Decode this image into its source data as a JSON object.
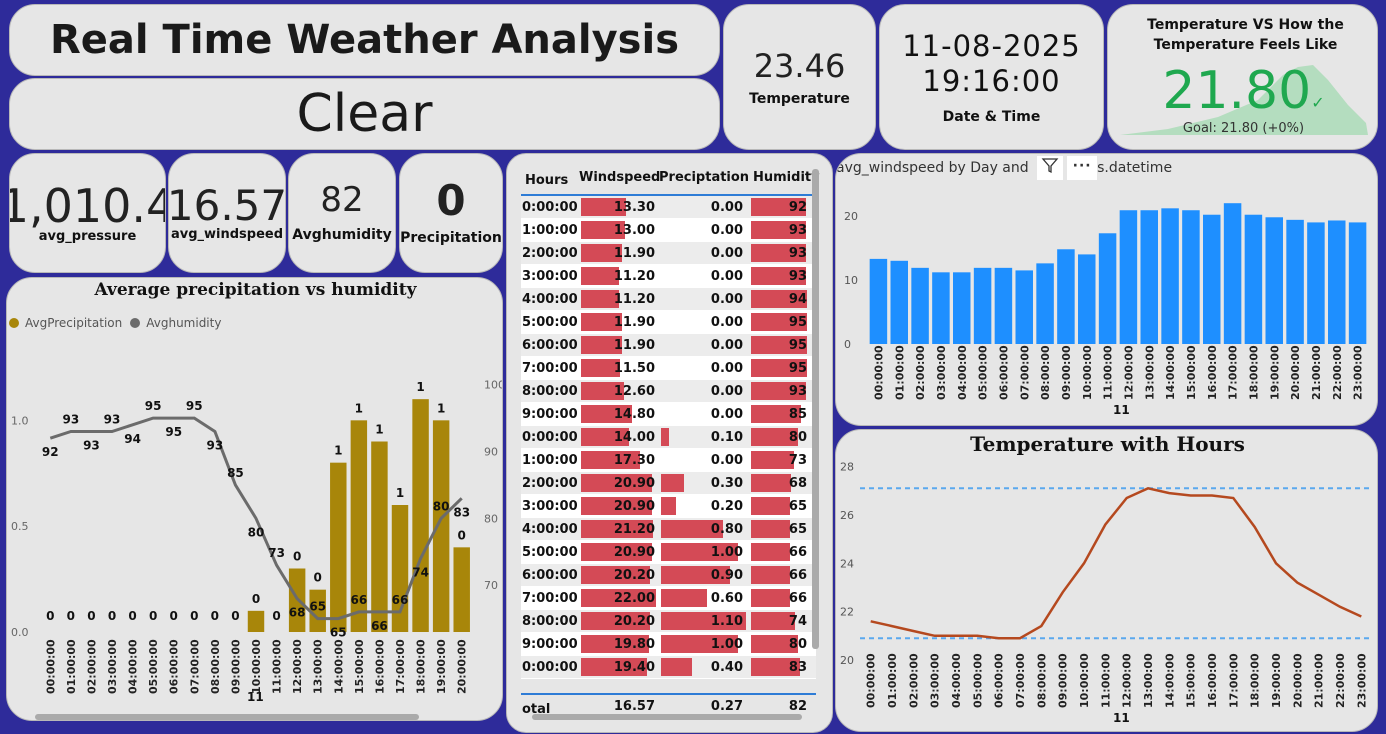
{
  "header": {
    "title": "Real Time Weather Analysis",
    "condition": "Clear"
  },
  "temperature_card": {
    "value": "23.46",
    "label": "Temperature"
  },
  "datetime_card": {
    "date": "11-08-2025",
    "time": "19:16:00",
    "label": "Date & Time"
  },
  "kpi_card": {
    "title": "Temperature VS How the Temperature Feels Like",
    "value": "21.80",
    "goal": "Goal: 21.80 (+0%)",
    "check": "✓",
    "accent": "#1fa84f"
  },
  "stats": [
    {
      "value": "1,010.4",
      "label": "avg_pressure"
    },
    {
      "value": "16.57",
      "label": "avg_windspeed"
    },
    {
      "value": "82",
      "label": "Avghumidity"
    },
    {
      "value": "0",
      "label": "Precipitation"
    }
  ],
  "precip_chart": {
    "title": "Average precipitation vs humidity",
    "legend": [
      {
        "name": "AvgPrecipitation",
        "color": "#a8860a"
      },
      {
        "name": "Avghumidity",
        "color": "#6b6b6b"
      }
    ],
    "day_label": "11"
  },
  "table": {
    "columns": [
      "Hours",
      "Windspeed",
      "Preciptation",
      "Humidity"
    ],
    "rows": [
      [
        "0:00:00",
        "13.30",
        "0.00",
        "92"
      ],
      [
        "1:00:00",
        "13.00",
        "0.00",
        "93"
      ],
      [
        "2:00:00",
        "11.90",
        "0.00",
        "93"
      ],
      [
        "3:00:00",
        "11.20",
        "0.00",
        "93"
      ],
      [
        "4:00:00",
        "11.20",
        "0.00",
        "94"
      ],
      [
        "5:00:00",
        "11.90",
        "0.00",
        "95"
      ],
      [
        "6:00:00",
        "11.90",
        "0.00",
        "95"
      ],
      [
        "7:00:00",
        "11.50",
        "0.00",
        "95"
      ],
      [
        "8:00:00",
        "12.60",
        "0.00",
        "93"
      ],
      [
        "9:00:00",
        "14.80",
        "0.00",
        "85"
      ],
      [
        "0:00:00",
        "14.00",
        "0.10",
        "80"
      ],
      [
        "1:00:00",
        "17.30",
        "0.00",
        "73"
      ],
      [
        "2:00:00",
        "20.90",
        "0.30",
        "68"
      ],
      [
        "3:00:00",
        "20.90",
        "0.20",
        "65"
      ],
      [
        "4:00:00",
        "21.20",
        "0.80",
        "65"
      ],
      [
        "5:00:00",
        "20.90",
        "1.00",
        "66"
      ],
      [
        "6:00:00",
        "20.20",
        "0.90",
        "66"
      ],
      [
        "7:00:00",
        "22.00",
        "0.60",
        "66"
      ],
      [
        "8:00:00",
        "20.20",
        "1.10",
        "74"
      ],
      [
        "9:00:00",
        "19.80",
        "1.00",
        "80"
      ],
      [
        "0:00:00",
        "19.40",
        "0.40",
        "83"
      ]
    ],
    "total": [
      "otal",
      "16.57",
      "0.27",
      "82"
    ]
  },
  "wind_chart": {
    "title": "avg_windspeed by Day and Hours.datetime",
    "title_visible_left": "avg_windspeed by Day and",
    "title_visible_right": "s.datetime",
    "day_label": "11"
  },
  "temp_chart": {
    "title": "Temperature with Hours",
    "day_label": "11"
  },
  "chart_data": [
    {
      "type": "bar",
      "title": "Average precipitation vs humidity",
      "categories": [
        "00:00:00",
        "01:00:00",
        "02:00:00",
        "03:00:00",
        "04:00:00",
        "05:00:00",
        "06:00:00",
        "07:00:00",
        "08:00:00",
        "09:00:00",
        "10:00:00",
        "11:00:00",
        "12:00:00",
        "13:00:00",
        "14:00:00",
        "15:00:00",
        "16:00:00",
        "17:00:00",
        "18:00:00",
        "19:00:00",
        "20:00:00"
      ],
      "series": [
        {
          "name": "AvgPrecipitation",
          "values": [
            0,
            0,
            0,
            0,
            0,
            0,
            0,
            0,
            0,
            0,
            0.1,
            0,
            0.3,
            0.2,
            0.8,
            1.0,
            0.9,
            0.6,
            1.1,
            1.0,
            0.4
          ],
          "labels": [
            "0",
            "0",
            "0",
            "0",
            "0",
            "0",
            "0",
            "0",
            "0",
            "0",
            "0",
            "0",
            "0",
            "0",
            "1",
            "1",
            "1",
            "1",
            "1",
            "1",
            "0"
          ]
        },
        {
          "name": "Avghumidity",
          "values": [
            92,
            93,
            93,
            93,
            94,
            95,
            95,
            95,
            93,
            85,
            80,
            73,
            68,
            65,
            65,
            66,
            66,
            66,
            74,
            80,
            83
          ],
          "labels": [
            "92",
            "93",
            "93",
            "93",
            "94",
            "95",
            "95",
            "95",
            "93",
            "85",
            "80",
            "73",
            "68",
            "65",
            "65",
            "66",
            "66",
            "66",
            "74",
            "80",
            "83"
          ]
        }
      ],
      "yticks_left": [
        "0.0",
        "0.5",
        "1.0"
      ],
      "yticks_right": [
        "70",
        "80",
        "90",
        "100"
      ],
      "ylim_left": [
        0,
        1.2
      ],
      "ylim_right": [
        63,
        101
      ],
      "xlabel": "11"
    },
    {
      "type": "bar",
      "title": "avg_windspeed by Day and Hours.datetime",
      "categories": [
        "00:00:00",
        "01:00:00",
        "02:00:00",
        "03:00:00",
        "04:00:00",
        "05:00:00",
        "06:00:00",
        "07:00:00",
        "08:00:00",
        "09:00:00",
        "10:00:00",
        "11:00:00",
        "12:00:00",
        "13:00:00",
        "14:00:00",
        "15:00:00",
        "16:00:00",
        "17:00:00",
        "18:00:00",
        "19:00:00",
        "20:00:00",
        "21:00:00",
        "22:00:00",
        "23:00:00"
      ],
      "values": [
        13.3,
        13.0,
        11.9,
        11.2,
        11.2,
        11.9,
        11.9,
        11.5,
        12.6,
        14.8,
        14.0,
        17.3,
        20.9,
        20.9,
        21.2,
        20.9,
        20.2,
        22.0,
        20.2,
        19.8,
        19.4,
        19.0,
        19.3,
        19.0
      ],
      "yticks": [
        "0",
        "10",
        "20"
      ],
      "ylim": [
        0,
        25
      ],
      "color": "#1e8fff",
      "xlabel": "11"
    },
    {
      "type": "line",
      "title": "Temperature with Hours",
      "categories": [
        "00:00:00",
        "01:00:00",
        "02:00:00",
        "03:00:00",
        "04:00:00",
        "05:00:00",
        "06:00:00",
        "07:00:00",
        "08:00:00",
        "09:00:00",
        "10:00:00",
        "11:00:00",
        "12:00:00",
        "13:00:00",
        "14:00:00",
        "15:00:00",
        "16:00:00",
        "17:00:00",
        "18:00:00",
        "19:00:00",
        "20:00:00",
        "21:00:00",
        "22:00:00",
        "23:00:00"
      ],
      "values": [
        21.6,
        21.4,
        21.2,
        21.0,
        21.0,
        21.0,
        20.9,
        20.9,
        21.4,
        22.8,
        24.0,
        25.6,
        26.7,
        27.1,
        26.9,
        26.8,
        26.8,
        26.7,
        25.5,
        24.0,
        23.2,
        22.7,
        22.2,
        21.8
      ],
      "yticks": [
        "20",
        "22",
        "24",
        "26",
        "28"
      ],
      "ylim": [
        20,
        28.6
      ],
      "ref_lines": [
        27.1,
        20.9
      ],
      "color": "#b5491f",
      "xlabel": "11"
    }
  ]
}
